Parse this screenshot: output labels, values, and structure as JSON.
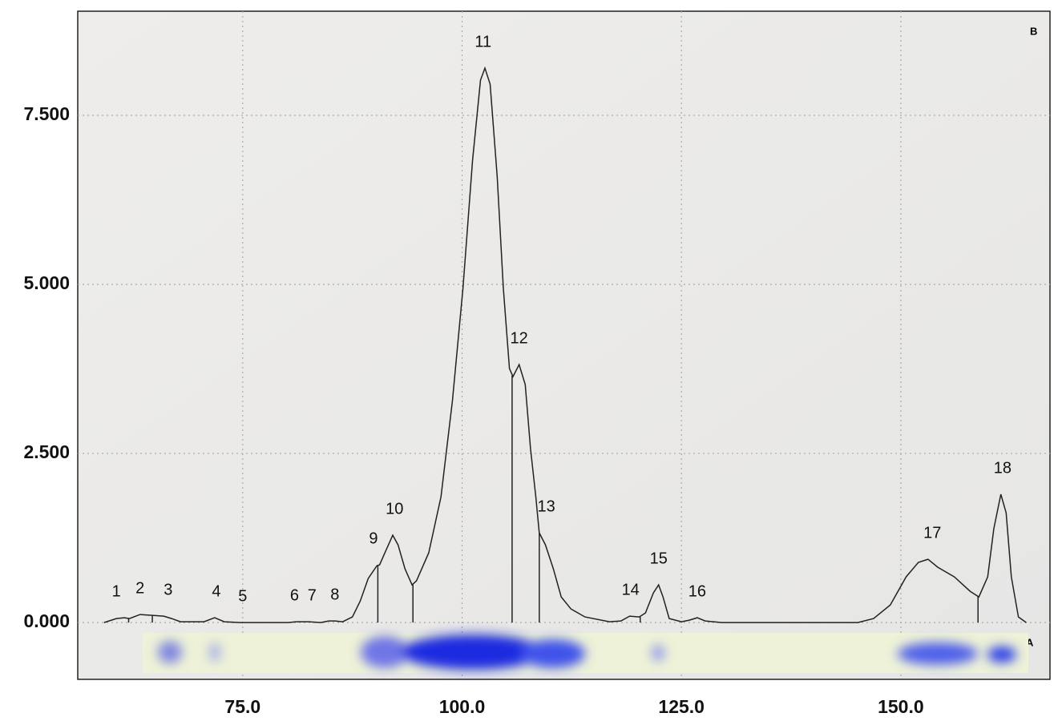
{
  "chart_data": {
    "type": "line",
    "xlim": [
      56.2,
      167
    ],
    "ylim": [
      -840,
      9040
    ],
    "xticks": [
      {
        "value": 75,
        "label": "75.0"
      },
      {
        "value": 100,
        "label": "100.0"
      },
      {
        "value": 125,
        "label": "125.0"
      },
      {
        "value": 150,
        "label": "150.0"
      }
    ],
    "yticks": [
      {
        "value": 0,
        "label": "0.000"
      },
      {
        "value": 2500,
        "label": "2.500"
      },
      {
        "value": 5000,
        "label": "5.000"
      },
      {
        "value": 7500,
        "label": "7.500"
      }
    ],
    "grid": true,
    "color": "#222222",
    "series": [
      {
        "x": [
          59.2,
          60.6,
          61.5,
          62.1,
          63.3,
          64.7,
          66.0,
          66.9,
          67.9,
          70.6,
          71.8,
          72.9,
          74.7,
          80.2,
          81.1,
          82.5,
          83.9,
          84.8,
          85.5,
          86.4,
          87.5,
          88.4,
          89.3,
          90.3,
          90.6,
          91.2,
          92.1,
          92.7,
          93.5,
          94.3,
          94.8,
          96.2,
          97.6,
          98.9,
          100.1,
          101.2,
          102.1,
          102.6,
          103.2,
          104.0,
          104.7,
          105.4,
          105.8,
          106.5,
          107.2,
          107.8,
          108.4,
          108.8,
          109.5,
          110.4,
          111.3,
          112.4,
          114.0,
          116.8,
          118.1,
          119.1,
          120.2,
          120.9,
          121.8,
          122.4,
          122.9,
          123.6,
          125.0,
          125.9,
          126.8,
          127.7,
          129.6,
          145.1,
          146.9,
          148.8,
          150.6,
          152.0,
          153.1,
          154.2,
          156.1,
          157.9,
          158.9,
          159.9,
          160.6,
          161.4,
          162.0,
          162.6,
          163.4,
          164.3
        ],
        "values": [
          0,
          59,
          71,
          59,
          118,
          107,
          95,
          59,
          12,
          12,
          71,
          12,
          0,
          0,
          12,
          12,
          0,
          24,
          24,
          12,
          83,
          320,
          652,
          841,
          853,
          1031,
          1291,
          1149,
          794,
          557,
          616,
          1031,
          1860,
          3282,
          4941,
          6836,
          8021,
          8199,
          7962,
          6600,
          4941,
          3756,
          3637,
          3815,
          3519,
          2571,
          1860,
          1327,
          1149,
          794,
          379,
          201,
          83,
          12,
          24,
          95,
          83,
          142,
          438,
          557,
          379,
          59,
          12,
          36,
          71,
          24,
          0,
          0,
          59,
          261,
          675,
          889,
          936,
          818,
          675,
          462,
          379,
          675,
          1386,
          1896,
          1623,
          675,
          83,
          0
        ]
      }
    ],
    "dividers": {
      "x": [
        62.0,
        64.7,
        90.4,
        94.4,
        105.7,
        108.8,
        120.3,
        158.8
      ],
      "values": [
        59,
        107,
        850,
        560,
        3650,
        1330,
        83,
        380
      ]
    },
    "peaks": {
      "labels": [
        "1",
        "2",
        "3",
        "4",
        "5",
        "6",
        "7",
        "8",
        "9",
        "10",
        "11",
        "12",
        "13",
        "14",
        "15",
        "16",
        "17",
        "18"
      ],
      "x": [
        60.6,
        63.3,
        66.5,
        72.0,
        75.0,
        80.9,
        82.9,
        85.5,
        89.9,
        92.3,
        102.4,
        106.5,
        109.6,
        119.2,
        122.4,
        126.8,
        153.6,
        161.6
      ],
      "values": [
        71,
        118,
        95,
        71,
        0,
        12,
        12,
        24,
        853,
        1291,
        8199,
        3815,
        1327,
        95,
        557,
        71,
        936,
        1896
      ]
    },
    "panel_labels": {
      "scan": "B",
      "gel": "A"
    }
  }
}
